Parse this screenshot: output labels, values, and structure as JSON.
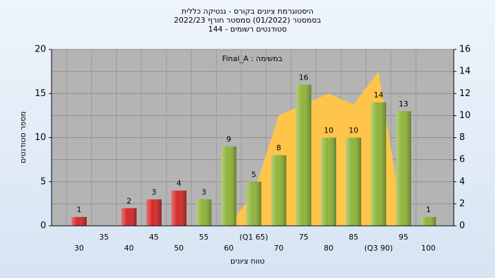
{
  "chart_data": {
    "type": "bar",
    "title": "היסטוגרמת ציונים בקורס - גנטיקה כללית",
    "subtitle": "בסמסטר  (01/2022)  סמסטר חורף 2022/23",
    "subtitle2": "סטודנטים רשומים - 144",
    "annotation": "במשימה : Final_A",
    "y_label": "מספר סטודנטים",
    "x_label": "טווח ציונים",
    "categories": [
      "30",
      "35",
      "40",
      "45",
      "50",
      "55",
      "60",
      "(Q1 65)",
      "70",
      "75",
      "80",
      "85",
      "(Q3 90)",
      "95",
      "100"
    ],
    "series": [
      {
        "values": [
          1,
          null,
          2,
          3,
          4,
          3,
          9,
          5,
          8,
          16,
          10,
          10,
          14,
          13,
          1
        ],
        "colors": [
          "#d62a2a",
          "#d62a2a",
          "#d62a2a",
          "#d62a2a",
          "#d62a2a",
          "#8fb43a",
          "#8fb43a",
          "#8fb43a",
          "#8fb43a",
          "#8fb43a",
          "#8fb43a",
          "#8fb43a",
          "#8fb43a",
          "#8fb43a",
          "#8fb43a"
        ]
      },
      {
        "type": "area",
        "axis": "y2",
        "color": "#ffc54a",
        "values": [
          null,
          null,
          null,
          null,
          null,
          null,
          0,
          3,
          10,
          11,
          12,
          11,
          14,
          0,
          null
        ]
      }
    ],
    "ylim": [
      0,
      20
    ],
    "yticks": [
      0,
      5,
      10,
      15,
      20
    ],
    "y2lim": [
      0,
      16
    ],
    "y2ticks": [
      0,
      2,
      4,
      6,
      8,
      10,
      12,
      14,
      16
    ],
    "grid": true
  }
}
